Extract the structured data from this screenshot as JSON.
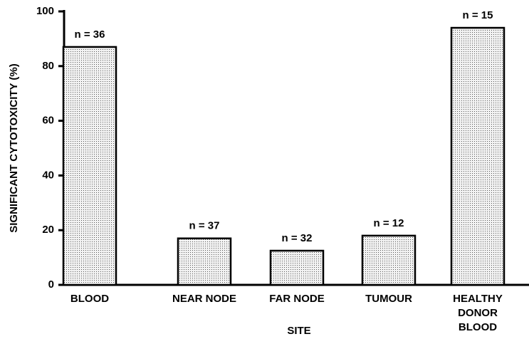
{
  "chart_data": {
    "type": "bar",
    "ylabel": "SIGNIFICANT CYTOTOXICITY  (%)",
    "xlabel": "SITE",
    "categories": [
      "BLOOD",
      "NEAR NODE",
      "FAR NODE",
      "TUMOUR",
      "HEALTHY\nDONOR BLOOD"
    ],
    "values": [
      87,
      17,
      12.5,
      18,
      94
    ],
    "annotations": [
      "n = 36",
      "n = 37",
      "n = 32",
      "n = 12",
      "n = 15"
    ],
    "color": "#e6e6e6",
    "ylim": [
      0,
      100
    ],
    "yticks": [
      0,
      20,
      40,
      60,
      80,
      100
    ],
    "grid": false
  }
}
